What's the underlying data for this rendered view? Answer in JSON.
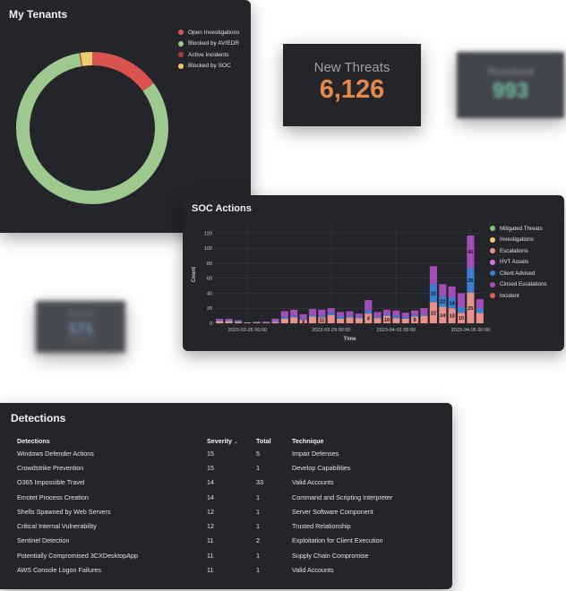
{
  "tenants": {
    "title": "My Tenants",
    "legend": [
      {
        "label": "Open Investigations",
        "color": "#d9534f"
      },
      {
        "label": "Blocked by AV/EDR",
        "color": "#9ec98e"
      },
      {
        "label": "Active Incidents",
        "color": "#b03a36"
      },
      {
        "label": "Blocked by SOC",
        "color": "#f0ca6e"
      }
    ],
    "chart_data": {
      "type": "pie",
      "donut": true,
      "labels": [
        "Open Investigations",
        "Blocked by AV/EDR",
        "Active Incidents",
        "Blocked by SOC"
      ],
      "values": [
        0.15,
        0.823,
        0.002,
        0.025
      ],
      "colors": [
        "#d9534f",
        "#9ec98e",
        "#b03a36",
        "#f0ca6e"
      ]
    }
  },
  "kpis": {
    "new_threats": {
      "label": "New Threats",
      "value": "6,126",
      "color": "#e5894a"
    },
    "resolved": {
      "label": "Resolved",
      "value": "993",
      "color": "#74bfa5"
    },
    "tenants": {
      "label": "Tenants",
      "value": "171",
      "sub": "Incidents 9"
    }
  },
  "soc": {
    "title": "SOC Actions",
    "legend": [
      {
        "label": "Mitigated Threats",
        "color": "#7cc47a"
      },
      {
        "label": "Investigations",
        "color": "#f0ca6e"
      },
      {
        "label": "Escalations",
        "color": "#e9928b"
      },
      {
        "label": "HVT Assets",
        "color": "#d678d6"
      },
      {
        "label": "Client Advised",
        "color": "#3a7fd0"
      },
      {
        "label": "Closed Escalations",
        "color": "#a44db8"
      },
      {
        "label": "Incident",
        "color": "#e0624e"
      }
    ],
    "chart_data": {
      "type": "bar",
      "stacked": true,
      "xlabel": "Time",
      "ylabel": "Count",
      "ylim": [
        0,
        130
      ],
      "yticks": [
        0,
        20,
        40,
        60,
        80,
        100,
        120
      ],
      "xticks": [
        "2023-03-25 00:00",
        "2023-03-29 00:00",
        "2023-04-01 00:00",
        "2023-04-05 00:00"
      ],
      "xtick_index": [
        3,
        12,
        19,
        27
      ],
      "series": [
        {
          "name": "Escalations",
          "color": "#e9928b",
          "values": [
            3,
            3,
            2,
            1,
            1,
            1,
            2,
            6,
            8,
            5,
            9,
            8,
            11,
            6,
            8,
            7,
            13,
            7,
            10,
            7,
            6,
            9,
            10,
            28,
            22,
            20,
            14,
            41,
            14
          ]
        },
        {
          "name": "Client Advised",
          "color": "#3a7fd0",
          "values": [
            1,
            1,
            1,
            0,
            1,
            0,
            1,
            2,
            2,
            2,
            2,
            2,
            3,
            3,
            2,
            2,
            4,
            2,
            2,
            3,
            2,
            2,
            2,
            24,
            14,
            14,
            8,
            33,
            6
          ]
        },
        {
          "name": "Closed Escalations",
          "color": "#a44db8",
          "values": [
            2,
            2,
            1,
            0,
            0,
            1,
            3,
            8,
            8,
            5,
            8,
            8,
            6,
            6,
            6,
            4,
            14,
            6,
            6,
            7,
            6,
            6,
            8,
            24,
            16,
            15,
            18,
            43,
            12
          ]
        }
      ],
      "data_labels": [
        {
          "bar": 9,
          "text": "9"
        },
        {
          "bar": 11,
          "text": "11"
        },
        {
          "bar": 16,
          "text": "4"
        },
        {
          "bar": 18,
          "text": "10"
        },
        {
          "bar": 21,
          "text": "9"
        },
        {
          "bar": 23,
          "text": "22"
        },
        {
          "bar": 23,
          "text": "22"
        },
        {
          "bar": 24,
          "text": "14"
        },
        {
          "bar": 24,
          "text": "22"
        },
        {
          "bar": 25,
          "text": "13"
        },
        {
          "bar": 25,
          "text": "14"
        },
        {
          "bar": 26,
          "text": "10"
        },
        {
          "bar": 27,
          "text": "25"
        },
        {
          "bar": 27,
          "text": "25"
        },
        {
          "bar": 27,
          "text": "41"
        }
      ]
    }
  },
  "detections": {
    "title": "Detections",
    "columns": [
      "Detections",
      "Severity",
      "Total",
      "Technique"
    ],
    "rows": [
      [
        "Windows Defender Actions",
        "15",
        "5",
        "Impair Defenses"
      ],
      [
        "Crowdstrike Prevention",
        "15",
        "1",
        "Develop Capabilities"
      ],
      [
        "O365 Impossible Travel",
        "14",
        "33",
        "Valid Accounts"
      ],
      [
        "Emotet Process Creation",
        "14",
        "1",
        "Command and Scripting Interpreter"
      ],
      [
        "Shells Spawned by Web Servers",
        "12",
        "1",
        "Server Software Component"
      ],
      [
        "Critical Internal Vulnerability",
        "12",
        "1",
        "Trusted Relationship"
      ],
      [
        "Sentinel Detection",
        "11",
        "2",
        "Exploitation for Client Execution"
      ],
      [
        "Potentially Compromised 3CXDesktopApp",
        "11",
        "1",
        "Supply Chain Compromise"
      ],
      [
        "AWS Console Logon Failures",
        "11",
        "1",
        "Valid Accounts"
      ]
    ]
  }
}
